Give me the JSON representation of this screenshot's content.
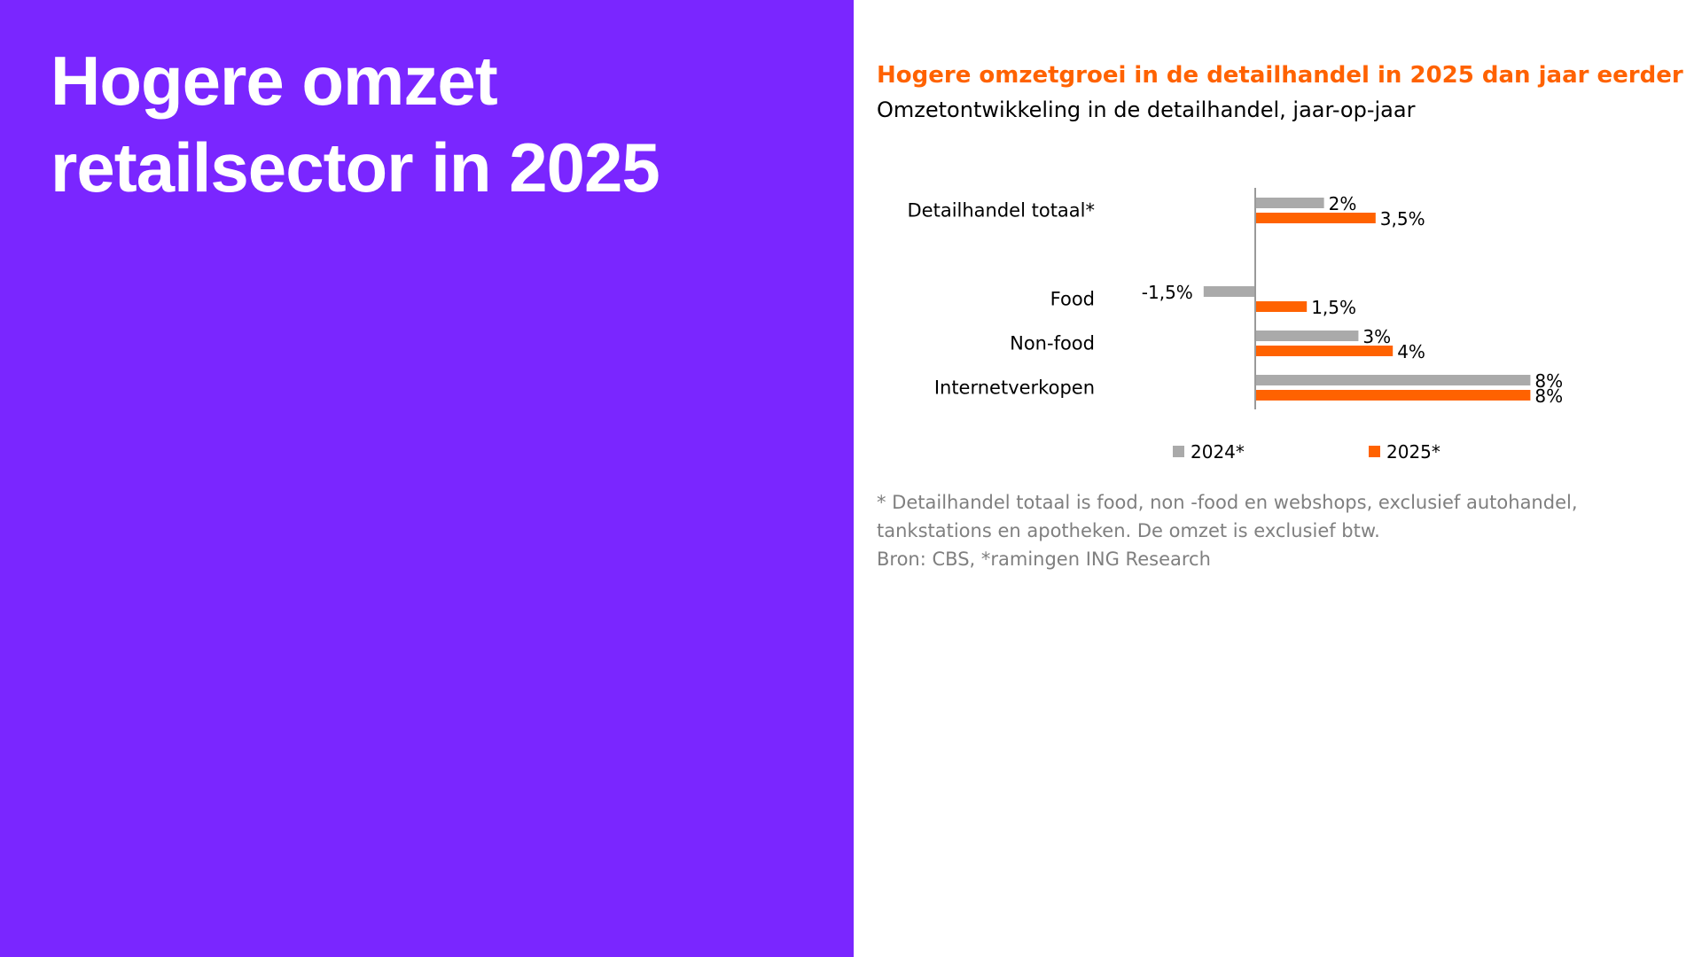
{
  "slide": {
    "title_line1": "Hogere omzet",
    "title_line2": "retailsector in 2025"
  },
  "colors": {
    "background_left": "#7a26ff",
    "title_text": "#ffffff",
    "accent_orange": "#ff6200",
    "series_2024": "#aaaaaa",
    "series_2025": "#ff6200"
  },
  "chart_data": {
    "type": "bar",
    "orientation": "horizontal",
    "title": "Hogere omzetgroei in de detailhandel in 2025 dan jaar eerder",
    "subtitle": "Omzetontwikkeling in de detailhandel, jaar-op-jaar",
    "categories": [
      "Detailhandel totaal*",
      "Food",
      "Non-food",
      "Internetverkopen"
    ],
    "series": [
      {
        "name": "2024*",
        "values": [
          2,
          -1.5,
          3,
          8
        ],
        "labels": [
          "2%",
          "-1,5%",
          "3%",
          "8%"
        ]
      },
      {
        "name": "2025*",
        "values": [
          3.5,
          1.5,
          4,
          8
        ],
        "labels": [
          "3,5%",
          "1,5%",
          "4%",
          "8%"
        ]
      }
    ],
    "xlim": [
      -1.5,
      8
    ],
    "grid": false,
    "legend": "bottom"
  },
  "footnote": {
    "line1": "* Detailhandel totaal is food, non -food en webshops, exclusief autohandel,",
    "line2": "tankstations en apotheken. De omzet is exclusief btw.",
    "line3": "Bron: CBS, *ramingen ING Research"
  }
}
